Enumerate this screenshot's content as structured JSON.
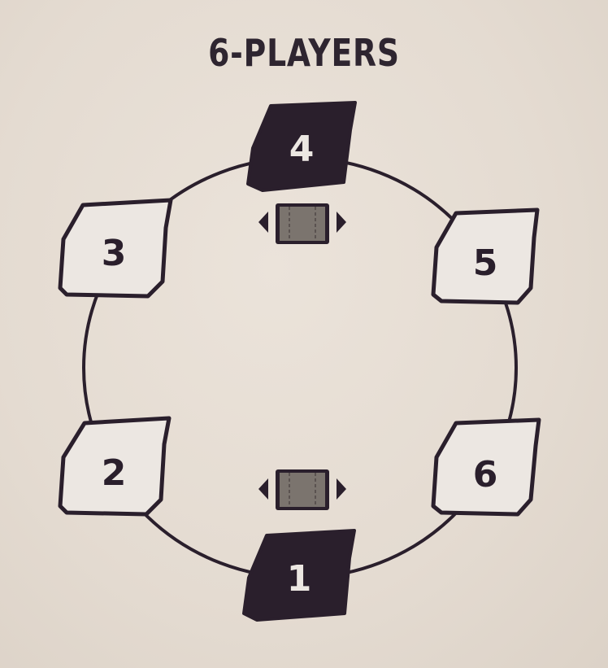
{
  "title": "6-PLAYERS",
  "colors": {
    "ink": "#2a1f2c",
    "seat_light": "#ece7e2",
    "seat_dark": "#2a1f2c",
    "deck": "#7b746e",
    "background": "#e6ddd3"
  },
  "seats": [
    {
      "label": "1",
      "style": "dark"
    },
    {
      "label": "2",
      "style": "light"
    },
    {
      "label": "3",
      "style": "light"
    },
    {
      "label": "4",
      "style": "dark"
    },
    {
      "label": "5",
      "style": "light"
    },
    {
      "label": "6",
      "style": "light"
    }
  ],
  "decks": [
    {
      "icon": "deck-with-arrows-icon"
    },
    {
      "icon": "deck-with-arrows-icon"
    }
  ]
}
